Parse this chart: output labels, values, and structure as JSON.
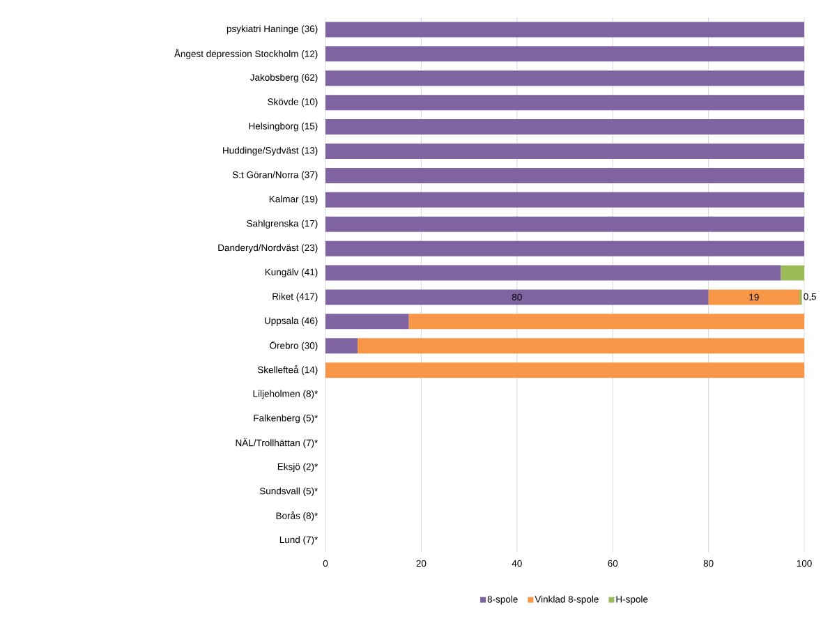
{
  "chart_data": {
    "type": "bar",
    "orientation": "horizontal",
    "stacked": true,
    "categories": [
      "psykiatri Haninge (36)",
      "Ångest depression Stockholm (12)",
      "Jakobsberg (62)",
      "Skövde (10)",
      "Helsingborg (15)",
      "Huddinge/Sydväst (13)",
      "S:t Göran/Norra (37)",
      "Kalmar (19)",
      "Sahlgrenska (17)",
      "Danderyd/Nordväst (23)",
      "Kungälv (41)",
      "Riket (417)",
      "Uppsala (46)",
      "Örebro (30)",
      "Skellefteå (14)",
      "Liljeholmen (8)*",
      "Falkenberg (5)*",
      "NÄL/Trollhättan (7)*",
      "Eksjö (2)*",
      "Sundsvall (5)*",
      "Borås (8)*",
      "Lund (7)*"
    ],
    "series": [
      {
        "name": "8-spole",
        "color": "#8064a2",
        "values": [
          100,
          100,
          100,
          100,
          100,
          100,
          100,
          100,
          100,
          100,
          95.1,
          80,
          17.4,
          6.7,
          0,
          null,
          null,
          null,
          null,
          null,
          null,
          null
        ],
        "value_labels": [
          null,
          null,
          null,
          null,
          null,
          null,
          null,
          null,
          null,
          null,
          null,
          "80",
          null,
          null,
          null,
          null,
          null,
          null,
          null,
          null,
          null,
          null
        ]
      },
      {
        "name": "Vinklad 8-spole",
        "color": "#f79646",
        "values": [
          0,
          0,
          0,
          0,
          0,
          0,
          0,
          0,
          0,
          0,
          0,
          19,
          82.6,
          93.3,
          100,
          null,
          null,
          null,
          null,
          null,
          null,
          null
        ],
        "value_labels": [
          null,
          null,
          null,
          null,
          null,
          null,
          null,
          null,
          null,
          null,
          null,
          "19",
          null,
          null,
          null,
          null,
          null,
          null,
          null,
          null,
          null,
          null
        ]
      },
      {
        "name": "H-spole",
        "color": "#9bbb59",
        "values": [
          0,
          0,
          0,
          0,
          0,
          0,
          0,
          0,
          0,
          0,
          4.9,
          0.5,
          0,
          0,
          0,
          null,
          null,
          null,
          null,
          null,
          null,
          null
        ],
        "value_labels": [
          null,
          null,
          null,
          null,
          null,
          null,
          null,
          null,
          null,
          null,
          null,
          "0,5",
          null,
          null,
          null,
          null,
          null,
          null,
          null,
          null,
          null,
          null
        ]
      }
    ],
    "xlim": [
      0,
      100
    ],
    "xticks": [
      0,
      20,
      40,
      60,
      80,
      100
    ],
    "grid": "x",
    "legend": "bottom"
  }
}
